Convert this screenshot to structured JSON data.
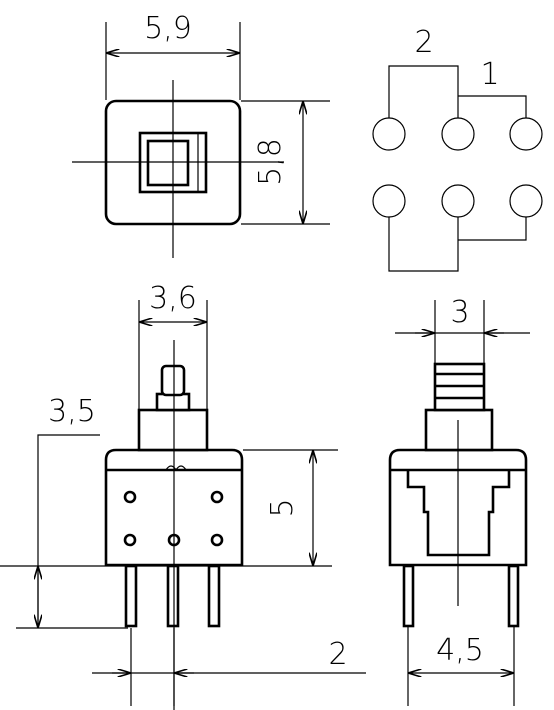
{
  "dimensions": {
    "top_width": "5,9",
    "top_height": "5,8",
    "front_button_width": "3,6",
    "front_left_height": "3,5",
    "front_body_height": "5",
    "front_pin_pitch": "2",
    "side_button_width": "3",
    "side_pin_span": "4,5"
  },
  "pin_groups": {
    "group_a": "2",
    "group_b": "1"
  }
}
